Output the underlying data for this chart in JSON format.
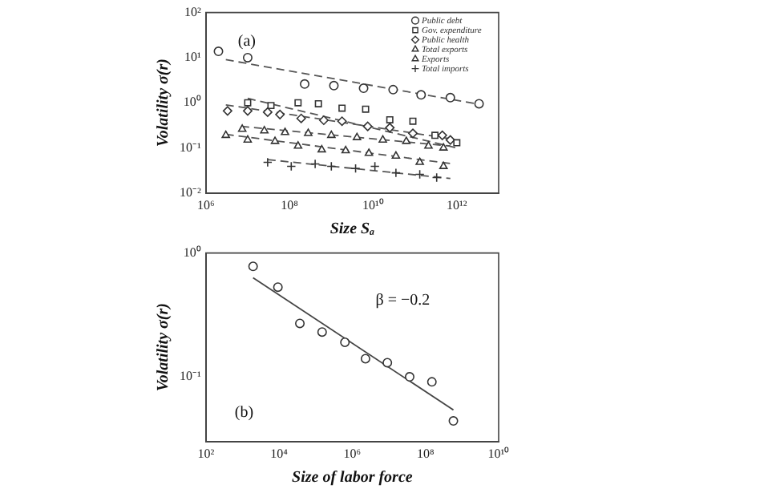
{
  "chart_data": [
    {
      "type": "scatter",
      "xlabel": "Size Sₐ",
      "ylabel": "Volatility σ(r)",
      "log": "xy",
      "grid": false,
      "legend": "top right",
      "annotations": [
        "(a)"
      ],
      "xlim": [
        1000000.0,
        10000000000000.0
      ],
      "xticks": [
        {
          "value": 1000000.0,
          "label": "10⁶"
        },
        {
          "value": 100000000.0,
          "label": "10⁸"
        },
        {
          "value": 10000000000.0,
          "label": "10¹⁰"
        },
        {
          "value": 1000000000000.0,
          "label": "10¹²"
        }
      ],
      "ylim": [
        0.01,
        100
      ],
      "yticks": [
        {
          "value": 0.01,
          "label": "10⁻²"
        },
        {
          "value": 0.1,
          "label": "10⁻¹"
        },
        {
          "value": 1,
          "label": "10⁰"
        },
        {
          "value": 10,
          "label": "10¹"
        },
        {
          "value": 100,
          "label": "10²"
        }
      ],
      "series": [
        {
          "name": "Public debt",
          "color": "#333333",
          "marker": "circle",
          "x": [
            2000000.0,
            10000000.0,
            230000000.0,
            1150000000.0,
            5900000000.0,
            30000000000.0,
            140000000000.0,
            700000000000.0,
            3400000000000.0
          ],
          "values": [
            13.8,
            10,
            2.6,
            2.4,
            2.1,
            1.95,
            1.5,
            1.3,
            0.95
          ]
        },
        {
          "name": "Gov. expenditure",
          "color": "#333333",
          "marker": "square",
          "x": [
            10000000.0,
            36000000.0,
            160000000.0,
            490000000.0,
            1800000000.0,
            6600000000.0,
            25000000000.0,
            89000000000.0,
            300000000000.0,
            1000000000000.0
          ],
          "values": [
            1,
            0.87,
            1,
            0.95,
            0.76,
            0.72,
            0.42,
            0.39,
            0.19,
            0.13
          ]
        },
        {
          "name": "Public health",
          "color": "#333333",
          "marker": "diamond",
          "x": [
            3300000.0,
            10000000.0,
            30000000.0,
            59000000.0,
            190000000.0,
            660000000.0,
            1800000000.0,
            7400000000.0,
            25000000000.0,
            89000000000.0,
            450000000000.0,
            700000000000.0
          ],
          "values": [
            0.66,
            0.66,
            0.62,
            0.55,
            0.45,
            0.41,
            0.39,
            0.3,
            0.28,
            0.21,
            0.19,
            0.15
          ]
        },
        {
          "name": "Total exports",
          "color": "#333333",
          "marker": "triangle",
          "x": [
            7400000.0,
            25000000.0,
            78000000.0,
            280000000.0,
            1000000000.0,
            4100000000.0,
            17000000000.0,
            62000000000.0,
            210000000000.0,
            480000000000.0
          ],
          "values": [
            0.26,
            0.24,
            0.22,
            0.21,
            0.19,
            0.17,
            0.15,
            0.14,
            0.11,
            0.1
          ]
        },
        {
          "name": "Exports",
          "color": "#333333",
          "marker": "triangle",
          "x": [
            3000000.0,
            10000000.0,
            45000000.0,
            160000000.0,
            590000000.0,
            2200000000.0,
            7900000000.0,
            35000000000.0,
            130000000000.0,
            480000000000.0
          ],
          "values": [
            0.19,
            0.15,
            0.14,
            0.11,
            0.091,
            0.087,
            0.076,
            0.066,
            0.048,
            0.039
          ]
        },
        {
          "name": "Total imports",
          "color": "#333333",
          "marker": "cross",
          "x": [
            30000000.0,
            110000000.0,
            410000000.0,
            1000000000.0,
            3800000000.0,
            11000000000.0,
            35000000000.0,
            130000000000.0,
            330000000000.0
          ],
          "values": [
            0.048,
            0.039,
            0.044,
            0.039,
            0.035,
            0.039,
            0.028,
            0.026,
            0.022
          ]
        },
        {
          "type": "line",
          "color": "#555555",
          "marker": "none",
          "line_style": "dashed",
          "x": [
            3000000.0,
            4000000000000.0
          ],
          "values": [
            9,
            0.9
          ]
        },
        {
          "type": "line",
          "color": "#555555",
          "marker": "none",
          "line_style": "dashed",
          "x": [
            10000000.0,
            1000000000000.0
          ],
          "values": [
            1.25,
            0.1
          ]
        },
        {
          "type": "line",
          "color": "#555555",
          "marker": "none",
          "line_style": "dashed",
          "x": [
            3000000.0,
            700000000000.0
          ],
          "values": [
            0.9,
            0.16
          ]
        },
        {
          "type": "line",
          "color": "#555555",
          "marker": "none",
          "line_style": "dashed",
          "x": [
            7000000.0,
            700000000000.0
          ],
          "values": [
            0.3,
            0.11
          ]
        },
        {
          "type": "line",
          "color": "#555555",
          "marker": "none",
          "line_style": "dashed",
          "x": [
            3000000.0,
            700000000000.0
          ],
          "values": [
            0.2,
            0.045
          ]
        },
        {
          "type": "line",
          "color": "#555555",
          "marker": "none",
          "line_style": "dashed",
          "x": [
            30000000.0,
            700000000000.0
          ],
          "values": [
            0.055,
            0.021
          ]
        }
      ]
    },
    {
      "type": "scatter",
      "xlabel": "Size of labor force",
      "ylabel": "Volatility σ(r)",
      "log": "xy",
      "grid": false,
      "annotations": [
        "β = −0.2",
        "(b)"
      ],
      "xlim": [
        100,
        10000000000.0
      ],
      "xticks": [
        {
          "value": 100,
          "label": "10²"
        },
        {
          "value": 10000.0,
          "label": "10⁴"
        },
        {
          "value": 1000000.0,
          "label": "10⁶"
        },
        {
          "value": 100000000.0,
          "label": "10⁸"
        },
        {
          "value": 10000000000.0,
          "label": "10¹⁰"
        }
      ],
      "ylim": [
        0.03,
        1
      ],
      "yticks": [
        {
          "value": 0.1,
          "label": "10⁻¹"
        },
        {
          "value": 1,
          "label": "10⁰"
        }
      ],
      "series": [
        {
          "color": "#333333",
          "marker": "circle",
          "x": [
            1950,
            9300,
            37000.0,
            150000.0,
            630000.0,
            2300000.0,
            9100000.0,
            37000000.0,
            150000000.0,
            580000000.0
          ],
          "values": [
            0.78,
            0.53,
            0.27,
            0.23,
            0.19,
            0.14,
            0.13,
            0.1,
            0.091,
            0.044
          ]
        },
        {
          "type": "line",
          "color": "#444444",
          "marker": "none",
          "line_style": "solid",
          "x": [
            1950,
            580000000.0
          ],
          "values": [
            0.63,
            0.054
          ]
        }
      ]
    }
  ]
}
